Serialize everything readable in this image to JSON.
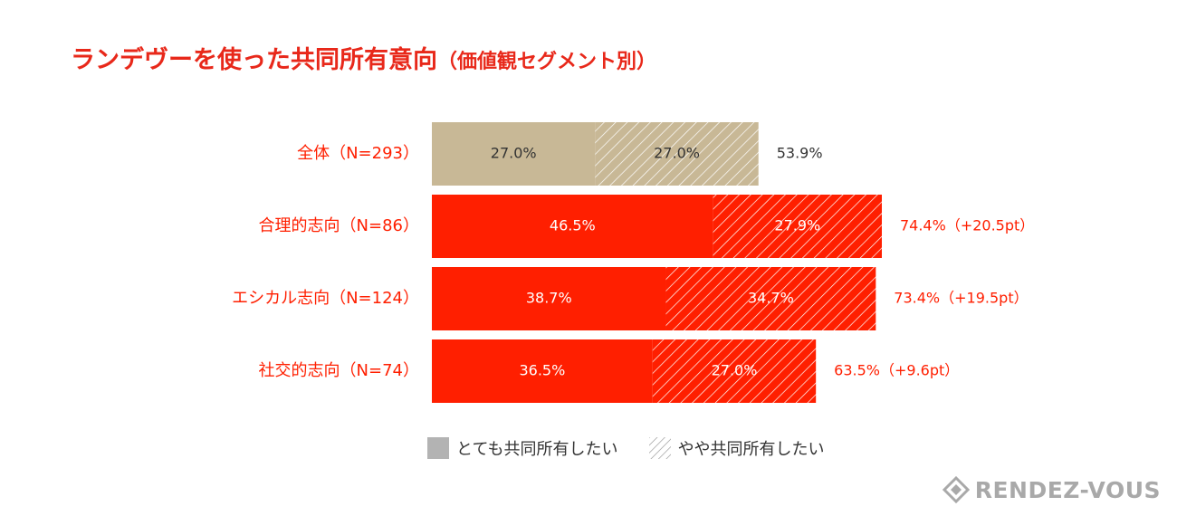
{
  "title": {
    "main": "ランデヴーを使った共同所有意向",
    "sub": "（価値観セグメント別）"
  },
  "colors": {
    "accent": "#ff1f00",
    "base": "#c8b896",
    "title": "#e8281a",
    "legend_solid": "#b3b3b3"
  },
  "chart_data": {
    "type": "bar",
    "orientation": "horizontal",
    "stacked": true,
    "categories": [
      "全体（N=293）",
      "合理的志向（N=86）",
      "エシカル志向（N=124）",
      "社交的志向（N=74）"
    ],
    "series": [
      {
        "name": "とても共同所有したい",
        "values": [
          27.0,
          46.5,
          38.7,
          36.5
        ],
        "labels": [
          "27.0%",
          "46.5%",
          "38.7%",
          "36.5%"
        ]
      },
      {
        "name": "やや共同所有したい",
        "values": [
          27.0,
          27.9,
          34.7,
          27.0
        ],
        "labels": [
          "27.0%",
          "27.9%",
          "34.7%",
          "27.0%"
        ]
      }
    ],
    "totals": [
      "53.9%",
      "74.4%（+20.5pt）",
      "73.4%（+19.5pt）",
      "63.5%（+9.6pt）"
    ],
    "xlim": [
      0,
      100
    ],
    "grid": false,
    "legend_position": "bottom"
  },
  "legend": {
    "items": [
      "とても共同所有したい",
      "やや共同所有したい"
    ]
  },
  "logo": {
    "text": "RENDEZ-VOUS"
  }
}
